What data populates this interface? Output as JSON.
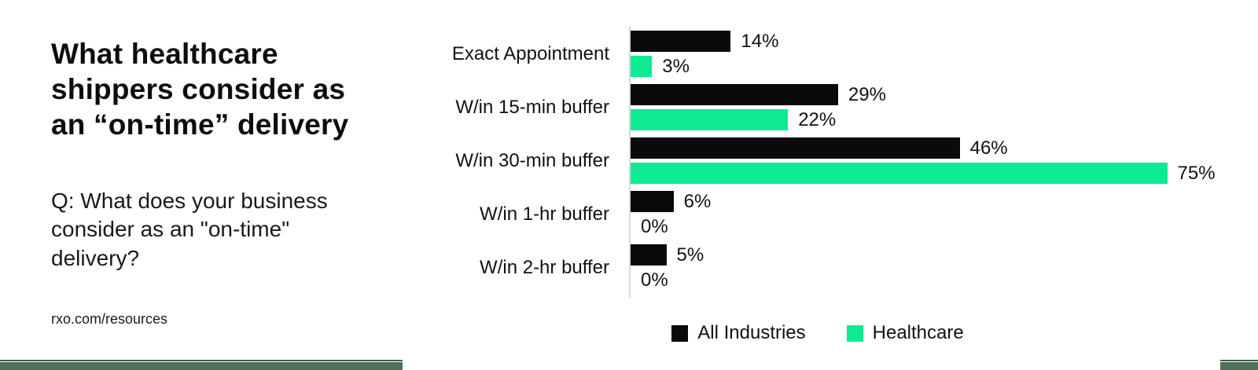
{
  "header": {
    "title": "What healthcare\nshippers consider as\nan “on-time” delivery",
    "subtitle": "Q: What does your business\nconsider as an \"on-time\"\ndelivery?",
    "source": "rxo.com/resources"
  },
  "chart_data": {
    "type": "bar",
    "orientation": "horizontal",
    "title": "What healthcare shippers consider as an “on-time” delivery",
    "categories": [
      "Exact Appointment",
      "W/in 15-min buffer",
      "W/in 30-min buffer",
      "W/in 1-hr buffer",
      "W/in 2-hr buffer"
    ],
    "series": [
      {
        "name": "All Industries",
        "color": "#0a0a0a",
        "values": [
          14,
          29,
          46,
          6,
          5
        ]
      },
      {
        "name": "Healthcare",
        "color": "#0ceb92",
        "values": [
          3,
          22,
          75,
          0,
          0
        ]
      }
    ],
    "value_suffix": "%",
    "xlim": [
      0,
      84
    ],
    "gridlines": false,
    "legend_position": "bottom",
    "axis_color": "#d8d8d8"
  },
  "colors": {
    "all_industries": "#0a0a0a",
    "healthcare": "#0ceb92",
    "band_dark": "#3f5f4a",
    "band_fill": "#4e7158"
  }
}
